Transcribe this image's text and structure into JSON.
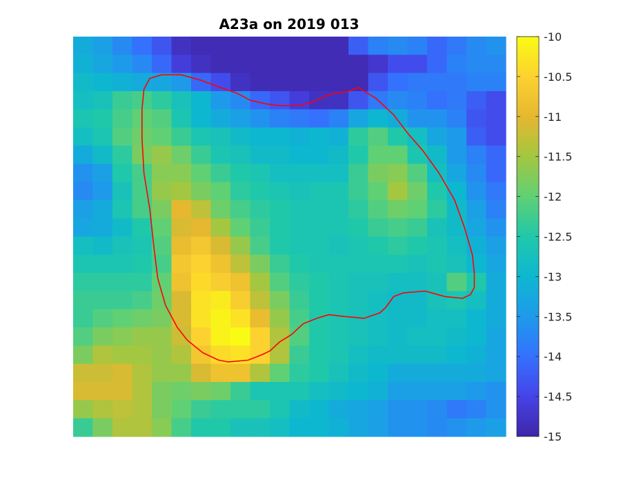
{
  "chart_data": {
    "type": "heatmap",
    "title": "A23a on 2019 013",
    "xlabel": "",
    "ylabel": "",
    "colormap": "parula",
    "clim": [
      -15,
      -10
    ],
    "colorbar": {
      "position": "right",
      "ticks": [
        -10,
        -10.5,
        -11,
        -11.5,
        -12,
        -12.5,
        -13,
        -13.5,
        -14,
        -14.5,
        -15
      ],
      "tick_labels": [
        "-10",
        "-10.5",
        "-11",
        "-11.5",
        "-12",
        "-12.5",
        "-13",
        "-13.5",
        "-14",
        "-14.5",
        "-15"
      ]
    },
    "grid": false,
    "rows": 22,
    "cols": 22,
    "values": [
      [
        -13.2,
        -13.4,
        -13.7,
        -14.0,
        -14.3,
        -14.8,
        -14.9,
        -14.9,
        -14.9,
        -14.9,
        -14.9,
        -14.9,
        -14.9,
        -14.9,
        -14.2,
        -13.8,
        -13.7,
        -13.8,
        -14.1,
        -13.9,
        -13.7,
        -13.6
      ],
      [
        -13.1,
        -13.3,
        -13.5,
        -13.7,
        -14.1,
        -14.6,
        -14.8,
        -14.9,
        -14.9,
        -14.9,
        -14.9,
        -14.9,
        -14.9,
        -14.9,
        -14.9,
        -14.7,
        -14.4,
        -14.4,
        -14.1,
        -13.8,
        -13.7,
        -13.7
      ],
      [
        -12.9,
        -13.0,
        -13.1,
        -13.2,
        -13.3,
        -13.5,
        -14.1,
        -14.4,
        -14.8,
        -14.9,
        -14.9,
        -14.9,
        -14.9,
        -14.9,
        -14.9,
        -14.3,
        -14.0,
        -13.9,
        -13.9,
        -13.9,
        -13.8,
        -13.8
      ],
      [
        -12.8,
        -12.7,
        -12.3,
        -12.2,
        -12.4,
        -12.7,
        -13.0,
        -13.5,
        -13.7,
        -14.1,
        -14.3,
        -14.6,
        -14.8,
        -14.8,
        -14.3,
        -13.9,
        -13.7,
        -13.8,
        -14.0,
        -13.9,
        -14.2,
        -14.4
      ],
      [
        -12.6,
        -12.5,
        -12.2,
        -12.0,
        -12.1,
        -12.6,
        -13.0,
        -13.2,
        -13.4,
        -13.6,
        -13.8,
        -13.9,
        -14.0,
        -13.8,
        -13.3,
        -13.0,
        -13.2,
        -13.6,
        -13.6,
        -13.8,
        -14.3,
        -14.4
      ],
      [
        -12.8,
        -12.6,
        -12.1,
        -11.9,
        -12.0,
        -12.3,
        -12.6,
        -12.7,
        -12.9,
        -13.0,
        -13.0,
        -13.1,
        -13.0,
        -13.1,
        -12.4,
        -12.1,
        -12.5,
        -12.8,
        -13.3,
        -13.5,
        -14.2,
        -14.4
      ],
      [
        -13.2,
        -12.9,
        -12.4,
        -11.8,
        -11.6,
        -11.9,
        -12.3,
        -12.6,
        -12.7,
        -12.9,
        -12.9,
        -13.0,
        -13.0,
        -12.9,
        -12.5,
        -12.0,
        -12.0,
        -12.6,
        -12.9,
        -13.5,
        -13.8,
        -14.1
      ],
      [
        -13.6,
        -13.4,
        -12.5,
        -12.2,
        -11.7,
        -11.7,
        -12.0,
        -12.3,
        -12.5,
        -12.6,
        -12.8,
        -12.8,
        -12.8,
        -12.8,
        -12.3,
        -11.8,
        -11.7,
        -12.1,
        -12.8,
        -13.3,
        -13.7,
        -14.1
      ],
      [
        -13.7,
        -13.5,
        -12.7,
        -12.2,
        -11.6,
        -11.5,
        -11.8,
        -12.0,
        -12.4,
        -12.5,
        -12.6,
        -12.7,
        -12.6,
        -12.6,
        -12.3,
        -12.0,
        -11.5,
        -11.9,
        -12.5,
        -13.0,
        -13.6,
        -13.9
      ],
      [
        -13.4,
        -13.2,
        -12.6,
        -12.2,
        -11.8,
        -11.0,
        -11.3,
        -11.9,
        -12.2,
        -12.4,
        -12.5,
        -12.6,
        -12.6,
        -12.6,
        -12.4,
        -12.1,
        -11.9,
        -12.0,
        -12.4,
        -12.9,
        -13.4,
        -13.8
      ],
      [
        -13.3,
        -13.2,
        -12.9,
        -12.5,
        -12.0,
        -11.1,
        -11.0,
        -11.5,
        -12.0,
        -12.3,
        -12.5,
        -12.6,
        -12.6,
        -12.6,
        -12.5,
        -12.3,
        -12.2,
        -12.3,
        -12.7,
        -12.9,
        -13.3,
        -13.6
      ],
      [
        -12.8,
        -12.9,
        -12.7,
        -12.6,
        -12.1,
        -10.9,
        -10.7,
        -11.1,
        -11.6,
        -12.2,
        -12.5,
        -12.6,
        -12.6,
        -12.7,
        -12.6,
        -12.5,
        -12.4,
        -12.5,
        -12.6,
        -12.8,
        -13.1,
        -13.4
      ],
      [
        -12.6,
        -12.6,
        -12.6,
        -12.5,
        -12.2,
        -10.7,
        -10.5,
        -10.8,
        -11.3,
        -11.8,
        -12.3,
        -12.5,
        -12.6,
        -12.6,
        -12.6,
        -12.6,
        -12.6,
        -12.7,
        -12.6,
        -12.7,
        -13.0,
        -13.3
      ],
      [
        -12.4,
        -12.4,
        -12.4,
        -12.4,
        -12.0,
        -10.8,
        -10.4,
        -10.6,
        -10.8,
        -11.5,
        -12.1,
        -12.4,
        -12.5,
        -12.6,
        -12.7,
        -12.7,
        -12.8,
        -12.8,
        -12.7,
        -12.1,
        -12.5,
        -13.2
      ],
      [
        -12.3,
        -12.3,
        -12.3,
        -12.2,
        -11.9,
        -11.1,
        -10.3,
        -10.2,
        -10.6,
        -11.3,
        -11.8,
        -12.3,
        -12.5,
        -12.6,
        -12.7,
        -12.8,
        -12.9,
        -12.9,
        -12.7,
        -12.6,
        -12.8,
        -13.2
      ],
      [
        -12.3,
        -12.1,
        -12.0,
        -11.9,
        -11.8,
        -11.1,
        -10.3,
        -10.1,
        -10.3,
        -10.9,
        -11.6,
        -12.2,
        -12.5,
        -12.6,
        -12.7,
        -12.8,
        -12.9,
        -12.9,
        -12.8,
        -12.8,
        -13.0,
        -13.2
      ],
      [
        -12.1,
        -11.8,
        -11.7,
        -11.6,
        -11.6,
        -11.2,
        -10.5,
        -10.1,
        -10.0,
        -10.5,
        -11.4,
        -12.1,
        -12.5,
        -12.6,
        -12.7,
        -12.8,
        -12.9,
        -12.8,
        -12.8,
        -12.9,
        -13.0,
        -13.3
      ],
      [
        -11.8,
        -11.4,
        -11.5,
        -11.5,
        -11.6,
        -11.4,
        -10.7,
        -10.4,
        -10.3,
        -10.5,
        -11.4,
        -12.3,
        -12.5,
        -12.6,
        -12.8,
        -12.9,
        -12.9,
        -12.9,
        -12.9,
        -13.0,
        -13.1,
        -13.3
      ],
      [
        -11.2,
        -11.2,
        -11.1,
        -11.4,
        -11.6,
        -11.6,
        -11.1,
        -10.8,
        -10.8,
        -11.4,
        -12.0,
        -12.4,
        -12.5,
        -12.7,
        -12.9,
        -13.0,
        -13.2,
        -13.2,
        -13.2,
        -13.2,
        -13.2,
        -13.3
      ],
      [
        -11.1,
        -11.1,
        -11.1,
        -11.4,
        -11.8,
        -11.9,
        -11.8,
        -11.9,
        -12.3,
        -12.6,
        -12.6,
        -12.6,
        -12.8,
        -12.9,
        -13.0,
        -13.1,
        -13.4,
        -13.4,
        -13.4,
        -13.4,
        -13.5,
        -13.6
      ],
      [
        -11.6,
        -11.4,
        -11.3,
        -11.4,
        -11.8,
        -12.0,
        -12.3,
        -12.4,
        -12.4,
        -12.4,
        -12.6,
        -12.9,
        -13.0,
        -13.2,
        -13.3,
        -13.4,
        -13.6,
        -13.6,
        -13.7,
        -13.9,
        -13.8,
        -13.6
      ],
      [
        -12.3,
        -11.8,
        -11.4,
        -11.4,
        -11.7,
        -12.2,
        -12.5,
        -12.5,
        -12.7,
        -12.7,
        -12.8,
        -13.0,
        -13.0,
        -13.1,
        -13.3,
        -13.4,
        -13.6,
        -13.6,
        -13.7,
        -13.6,
        -13.5,
        -13.4
      ]
    ],
    "contour": {
      "color": "#ff0000",
      "x": [
        4.5,
        5.5,
        6.5,
        7.5,
        8.3,
        9.0,
        9.8,
        10.5,
        11.5,
        12.2,
        13.0,
        14.0,
        14.5,
        15.4,
        16.3,
        17.0,
        17.8,
        18.6,
        19.4,
        19.9,
        20.3,
        20.4,
        20.4,
        20.2,
        19.8,
        18.9,
        17.9,
        16.8,
        16.3,
        15.9,
        15.6,
        14.8,
        13.8,
        13.0,
        12.4,
        11.7,
        11.1,
        10.5,
        10.0,
        9.6,
        8.9,
        7.9,
        7.4,
        6.6,
        5.8,
        5.3,
        4.7,
        4.3,
        4.1,
        3.9,
        3.6,
        3.5,
        3.5,
        3.6,
        3.9
      ],
      "y": [
        2.1,
        2.1,
        2.4,
        2.8,
        3.1,
        3.5,
        3.7,
        3.8,
        3.8,
        3.6,
        3.2,
        3.0,
        2.8,
        3.4,
        4.3,
        5.3,
        6.3,
        7.5,
        9.0,
        10.5,
        12.0,
        13.0,
        13.8,
        14.2,
        14.4,
        14.3,
        14.0,
        14.1,
        14.3,
        14.9,
        15.2,
        15.5,
        15.4,
        15.3,
        15.5,
        15.8,
        16.4,
        16.8,
        17.3,
        17.5,
        17.8,
        17.9,
        17.8,
        17.4,
        16.7,
        16.0,
        14.8,
        13.3,
        11.5,
        9.5,
        7.5,
        5.6,
        4.0,
        2.9,
        2.3
      ]
    }
  }
}
